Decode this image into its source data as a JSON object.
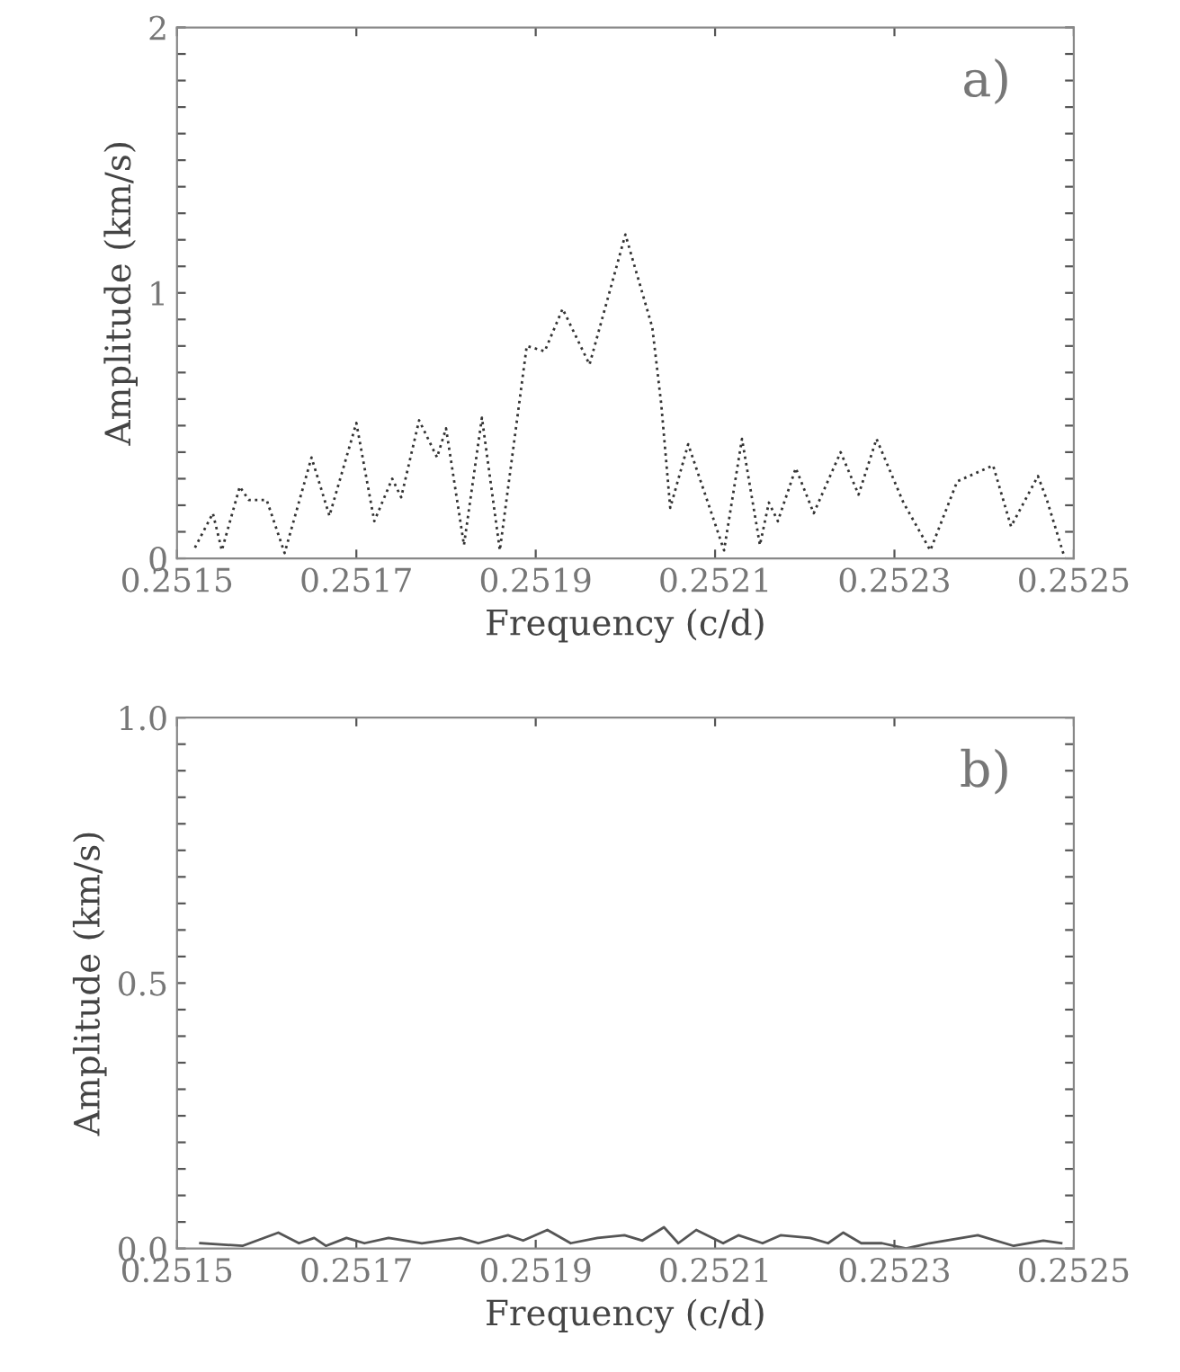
{
  "chart_data": [
    {
      "type": "line",
      "xlabel": "Frequency (c/d)",
      "ylabel": "Amplitude (km/s)",
      "annotations": [
        "a)"
      ],
      "line_style": "dotted",
      "marker": "none",
      "grid": false,
      "xlim": [
        0.2515,
        0.2525
      ],
      "xticks": [
        0.2515,
        0.2517,
        0.2519,
        0.2521,
        0.2523,
        0.2525
      ],
      "ylim": [
        0,
        2
      ],
      "yticks": [
        0,
        {
          "value": 0.1,
          "label": null
        },
        {
          "value": 0.2,
          "label": null
        },
        {
          "value": 0.3,
          "label": null
        },
        {
          "value": 0.4,
          "label": null
        },
        {
          "value": 0.5,
          "label": null
        },
        {
          "value": 0.6,
          "label": null
        },
        {
          "value": 0.7,
          "label": null
        },
        {
          "value": 0.8,
          "label": null
        },
        {
          "value": 0.9,
          "label": null
        },
        1,
        {
          "value": 1.1,
          "label": null
        },
        {
          "value": 1.2,
          "label": null
        },
        {
          "value": 1.3,
          "label": null
        },
        {
          "value": 1.4,
          "label": null
        },
        {
          "value": 1.5,
          "label": null
        },
        {
          "value": 1.6,
          "label": null
        },
        {
          "value": 1.7,
          "label": null
        },
        {
          "value": 1.8,
          "label": null
        },
        {
          "value": 1.9,
          "label": null
        },
        2
      ],
      "series": [
        {
          "color": "#333333",
          "x": [
            0.25152,
            0.25154,
            0.25155,
            0.25157,
            0.25158,
            0.2516,
            0.25162,
            0.25165,
            0.25167,
            0.2517,
            0.25172,
            0.25174,
            0.25175,
            0.25177,
            0.25179,
            0.2518,
            0.25182,
            0.25184,
            0.25186,
            0.25189,
            0.25191,
            0.25193,
            0.25196,
            0.252,
            0.25203,
            0.25204,
            0.25205,
            0.25207,
            0.25209,
            0.25211,
            0.25213,
            0.25215,
            0.25216,
            0.25217,
            0.25219,
            0.25221,
            0.25224,
            0.25226,
            0.25228,
            0.25231,
            0.25234,
            0.25237,
            0.25241,
            0.25243,
            0.25246,
            0.25247,
            0.25249
          ],
          "values": [
            0.04,
            0.17,
            0.03,
            0.27,
            0.22,
            0.22,
            0.02,
            0.38,
            0.16,
            0.51,
            0.14,
            0.3,
            0.23,
            0.52,
            0.38,
            0.49,
            0.05,
            0.53,
            0.03,
            0.8,
            0.78,
            0.94,
            0.73,
            1.22,
            0.87,
            0.58,
            0.19,
            0.43,
            0.23,
            0.03,
            0.45,
            0.05,
            0.21,
            0.14,
            0.34,
            0.17,
            0.4,
            0.24,
            0.45,
            0.21,
            0.03,
            0.29,
            0.35,
            0.12,
            0.31,
            0.22,
            0.0
          ]
        }
      ]
    },
    {
      "type": "line",
      "xlabel": "Frequency (c/d)",
      "ylabel": "Amplitude (km/s)",
      "annotations": [
        "b)"
      ],
      "line_style": "solid",
      "marker": "none",
      "grid": false,
      "xlim": [
        0.2515,
        0.2525
      ],
      "xticks": [
        0.2515,
        0.2517,
        0.2519,
        0.2521,
        0.2523,
        0.2525
      ],
      "ylim": [
        0,
        1
      ],
      "yticks": [
        {
          "value": 0,
          "label": "0.0"
        },
        {
          "value": 0.05,
          "label": null
        },
        {
          "value": 0.1,
          "label": null
        },
        {
          "value": 0.15,
          "label": null
        },
        {
          "value": 0.2,
          "label": null
        },
        {
          "value": 0.25,
          "label": null
        },
        {
          "value": 0.3,
          "label": null
        },
        {
          "value": 0.35,
          "label": null
        },
        {
          "value": 0.4,
          "label": null
        },
        {
          "value": 0.45,
          "label": null
        },
        0.5,
        {
          "value": 0.55,
          "label": null
        },
        {
          "value": 0.6,
          "label": null
        },
        {
          "value": 0.65,
          "label": null
        },
        {
          "value": 0.7,
          "label": null
        },
        {
          "value": 0.75,
          "label": null
        },
        {
          "value": 0.8,
          "label": null
        },
        {
          "value": 0.85,
          "label": null
        },
        {
          "value": 0.9,
          "label": null
        },
        {
          "value": 0.95,
          "label": null
        },
        {
          "value": 1,
          "label": "1.0"
        }
      ],
      "series": [
        {
          "color": "#555555",
          "x": [
            0.251526,
            0.251573,
            0.251613,
            0.251636,
            0.251653,
            0.251666,
            0.251689,
            0.251709,
            0.251736,
            0.251773,
            0.251816,
            0.251836,
            0.251869,
            0.251886,
            0.251913,
            0.251939,
            0.251969,
            0.251999,
            0.252019,
            0.252043,
            0.252059,
            0.252079,
            0.252109,
            0.252126,
            0.252153,
            0.252173,
            0.252206,
            0.252226,
            0.252243,
            0.252263,
            0.252286,
            0.252313,
            0.252339,
            0.252393,
            0.252433,
            0.252466,
            0.252486
          ],
          "values": [
            0.01,
            0.005,
            0.03,
            0.01,
            0.02,
            0.005,
            0.02,
            0.01,
            0.02,
            0.01,
            0.02,
            0.01,
            0.025,
            0.015,
            0.035,
            0.01,
            0.02,
            0.025,
            0.015,
            0.04,
            0.01,
            0.035,
            0.01,
            0.025,
            0.01,
            0.025,
            0.02,
            0.01,
            0.03,
            0.01,
            0.01,
            0.0,
            0.01,
            0.025,
            0.005,
            0.015,
            0.01
          ]
        }
      ]
    }
  ]
}
